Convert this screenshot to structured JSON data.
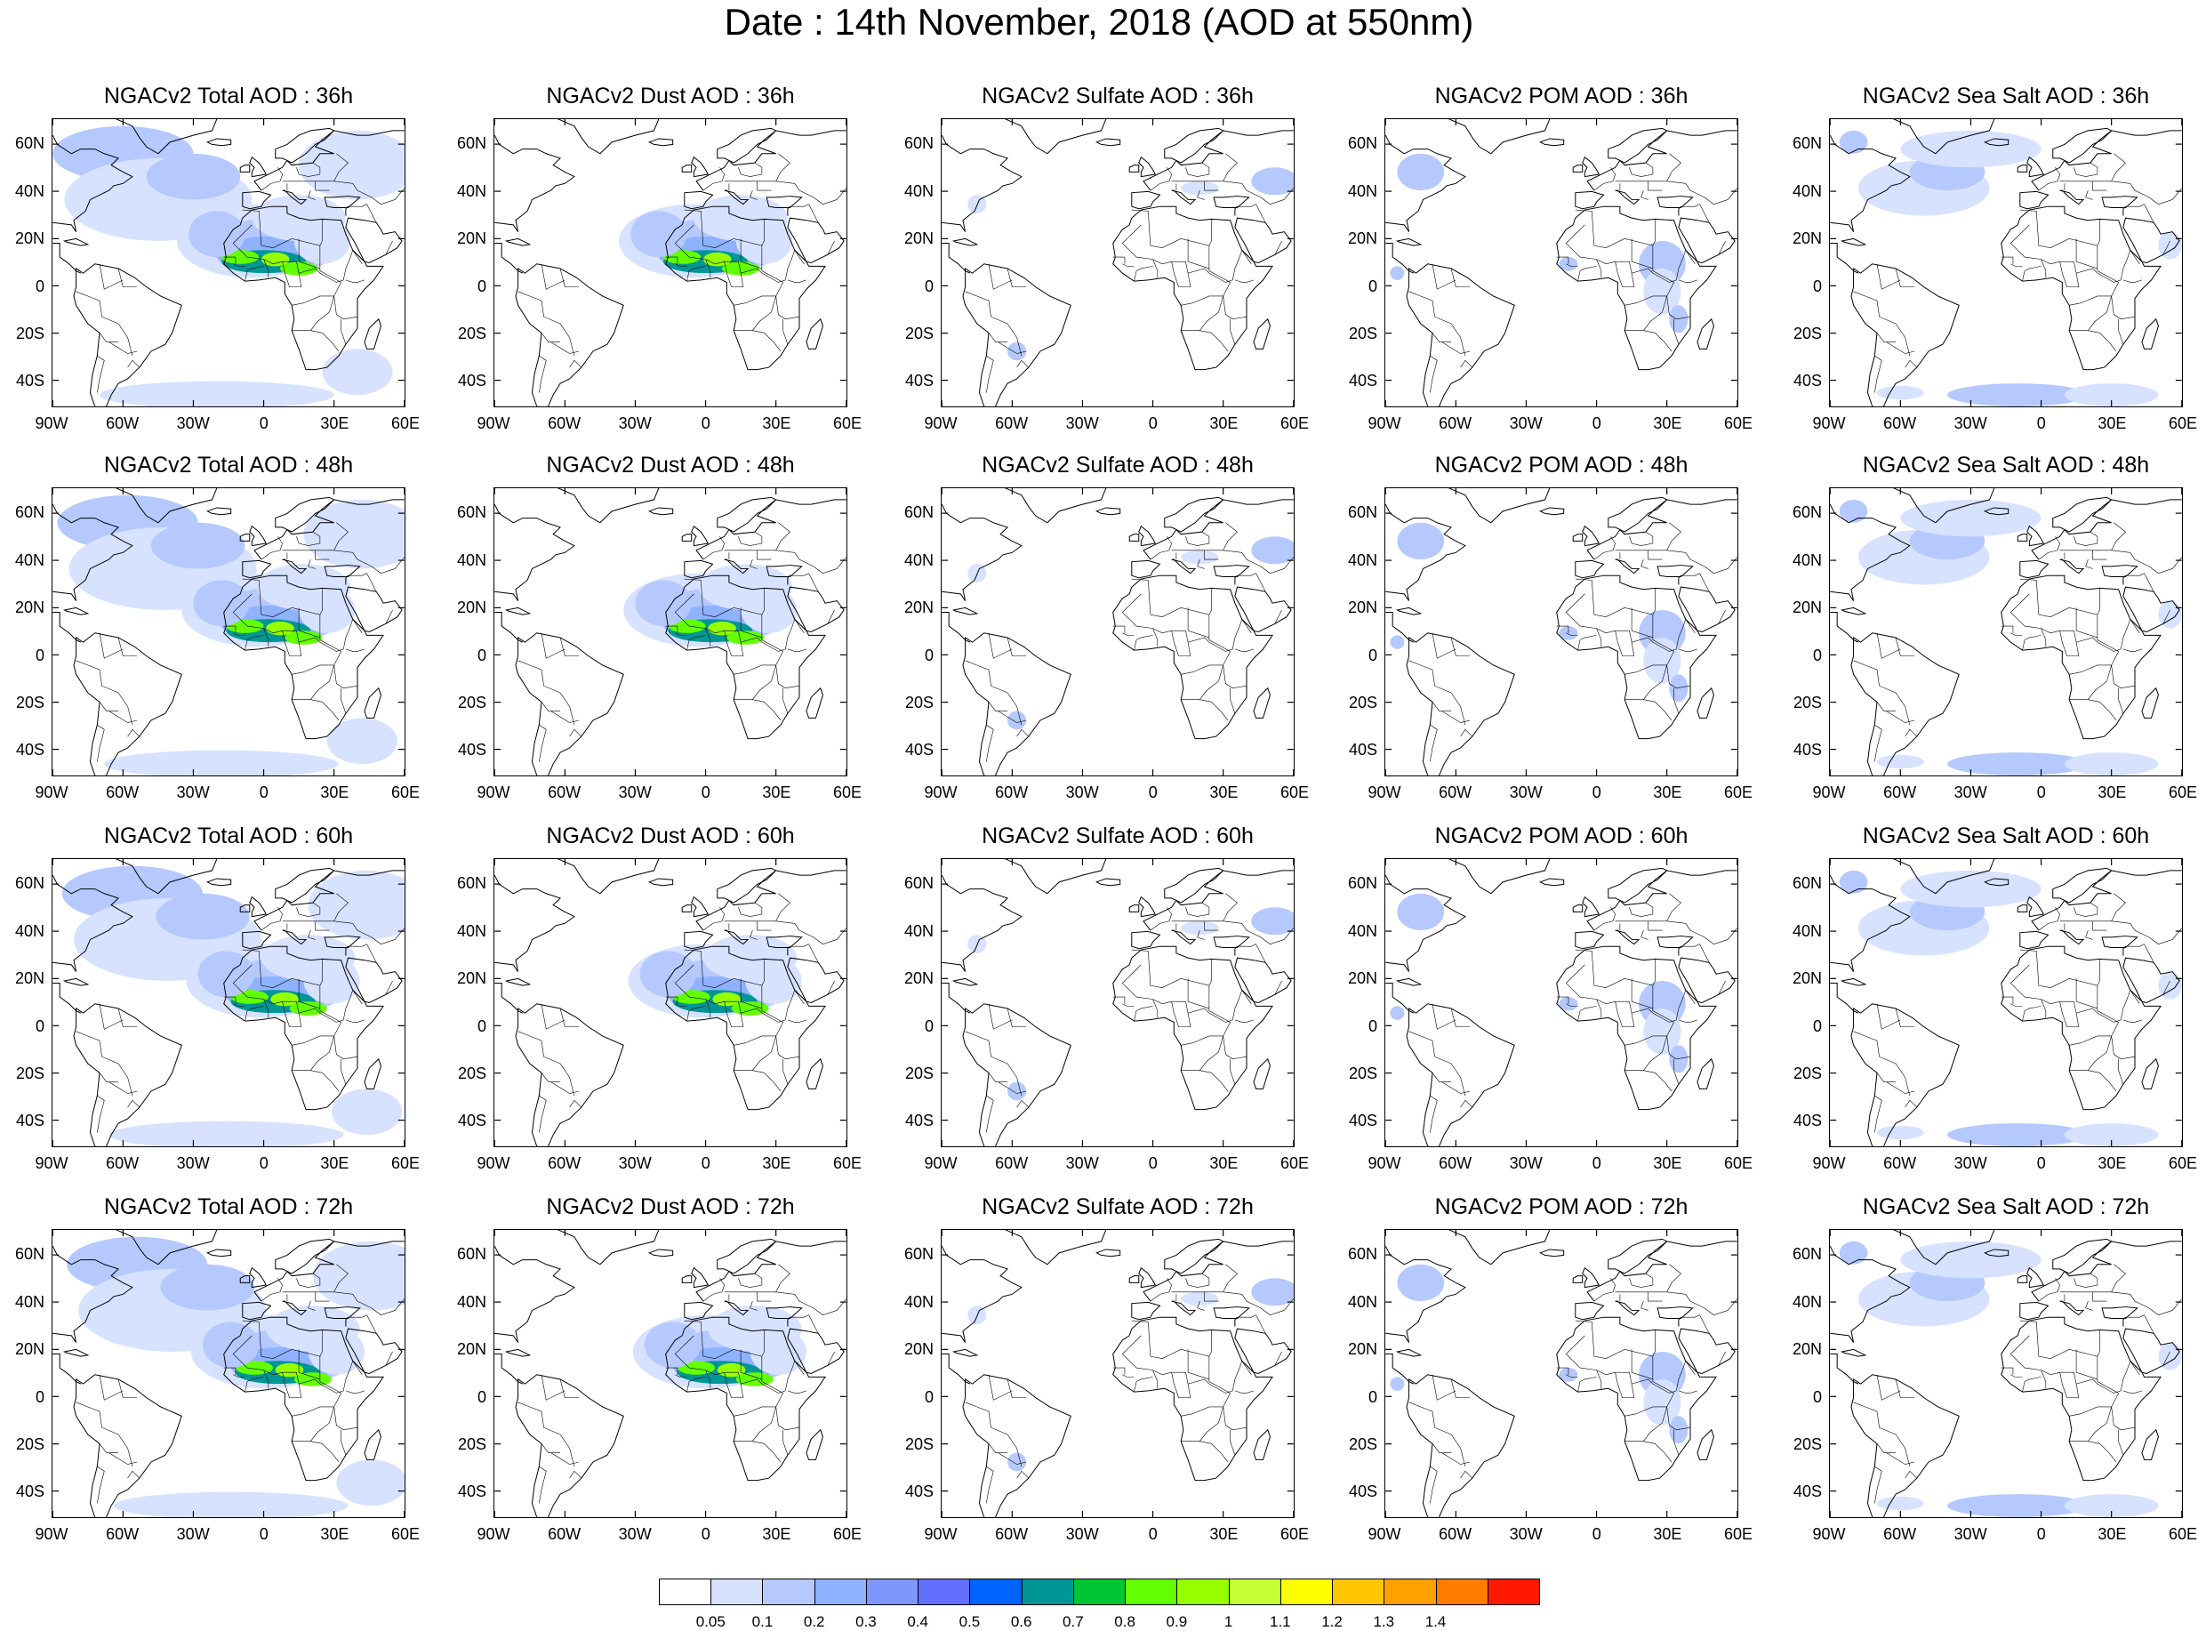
{
  "title": "Date : 14th November, 2018 (AOD at 550nm)",
  "panels": [
    [
      "NGACv2 Total AOD : 36h",
      "NGACv2 Dust AOD : 36h",
      "NGACv2 Sulfate AOD : 36h",
      "NGACv2 POM AOD : 36h",
      "NGACv2 Sea Salt AOD : 36h"
    ],
    [
      "NGACv2 Total AOD : 48h",
      "NGACv2 Dust AOD : 48h",
      "NGACv2 Sulfate AOD : 48h",
      "NGACv2 POM AOD : 48h",
      "NGACv2 Sea Salt AOD : 48h"
    ],
    [
      "NGACv2 Total AOD : 60h",
      "NGACv2 Dust AOD : 60h",
      "NGACv2 Sulfate AOD : 60h",
      "NGACv2 POM AOD : 60h",
      "NGACv2 Sea Salt AOD : 60h"
    ],
    [
      "NGACv2 Total AOD : 72h",
      "NGACv2 Dust AOD : 72h",
      "NGACv2 Sulfate AOD : 72h",
      "NGACv2 POM AOD : 72h",
      "NGACv2 Sea Salt  AOD : 72h"
    ]
  ],
  "lat_labels": [
    "60N",
    "40N",
    "20N",
    "0",
    "20S",
    "40S"
  ],
  "lon_labels": [
    "90W",
    "60W",
    "30W",
    "0",
    "30E",
    "60E"
  ],
  "colorbar": {
    "labels": [
      "0.05",
      "0.1",
      "0.2",
      "0.3",
      "0.4",
      "0.5",
      "0.6",
      "0.7",
      "0.8",
      "0.9",
      "1",
      "1.1",
      "1.2",
      "1.3",
      "1.4"
    ],
    "colors": [
      "#ffffff",
      "#d6e2ff",
      "#b5c9ff",
      "#8eb2ff",
      "#7f96ff",
      "#6370ff",
      "#0063ff",
      "#009696",
      "#00c633",
      "#63ff00",
      "#96ff00",
      "#c6ff33",
      "#ffff00",
      "#ffc600",
      "#ffa000",
      "#ff7c00",
      "#ff1900"
    ]
  },
  "icons": {
    "map": "continent-outline-map"
  }
}
